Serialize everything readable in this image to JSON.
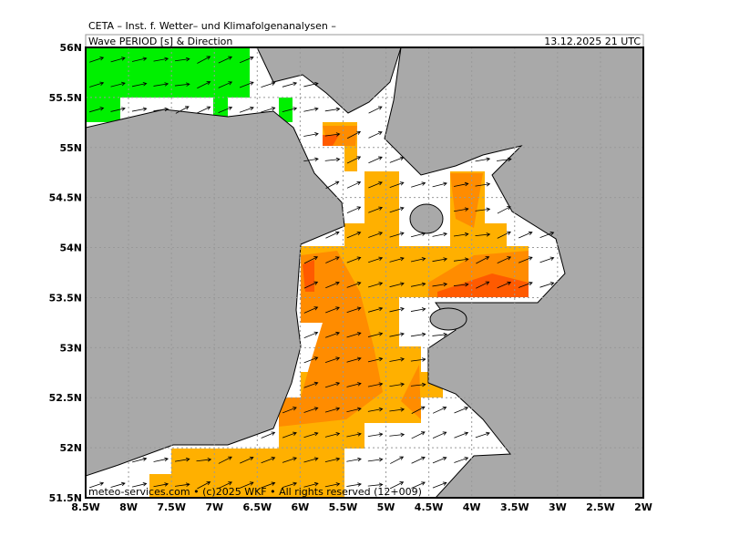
{
  "header": {
    "source": "CETA – Inst. f. Wetter– und Klimafolgenanalysen –",
    "title": "Wave PERIOD [s] & Direction",
    "time": "13.12.2025 21 UTC"
  },
  "map": {
    "lat_labels": [
      "56N",
      "55.5N",
      "55N",
      "54.5N",
      "54N",
      "53.5N",
      "53N",
      "52.5N",
      "52N",
      "51.5N"
    ],
    "lon_labels": [
      "8.5W",
      "8W",
      "7.5W",
      "7W",
      "6.5W",
      "6W",
      "5.5W",
      "5W",
      "4.5W",
      "4W",
      "3.5W",
      "3W",
      "2.5W",
      "2W"
    ],
    "credit": "meteo-services.com • (c)2025 WKF • All rights reserved (12+009)"
  }
}
